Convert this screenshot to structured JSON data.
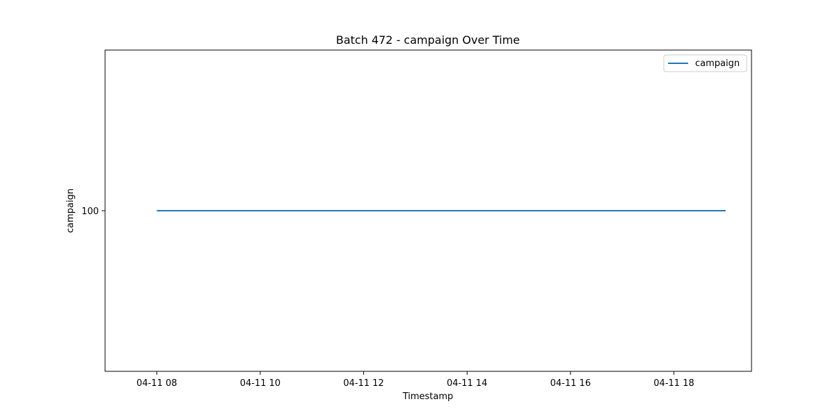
{
  "chart_data": {
    "type": "line",
    "title": "Batch 472 - campaign Over Time",
    "xlabel": "Timestamp",
    "ylabel": "campaign",
    "x_ticks": [
      "04-11 08",
      "04-11 10",
      "04-11 12",
      "04-11 14",
      "04-11 16",
      "04-11 18"
    ],
    "x_tick_hours": [
      8,
      10,
      12,
      14,
      16,
      18
    ],
    "y_ticks": [
      100
    ],
    "xlim_hours": [
      7.0,
      19.5
    ],
    "ylim": [
      94.5,
      105.5
    ],
    "grid": false,
    "legend_position": "top-right",
    "series": [
      {
        "name": "campaign",
        "color": "#1f77b4",
        "x_hours": [
          8,
          19
        ],
        "y": [
          100,
          100
        ]
      }
    ]
  }
}
